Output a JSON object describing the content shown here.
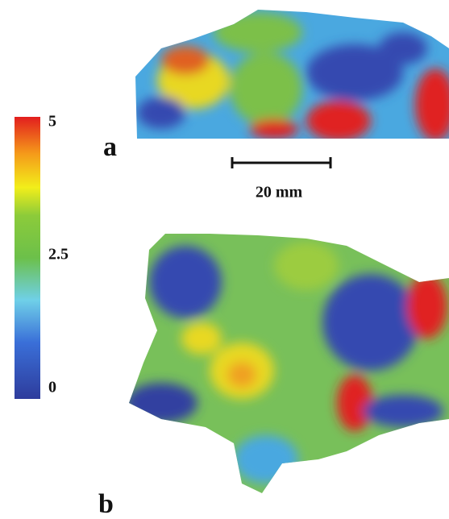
{
  "colorbar": {
    "ticks": [
      0,
      2.5,
      5
    ]
  },
  "panels": [
    {
      "label": "a"
    },
    {
      "label": "b"
    }
  ],
  "scale_bar": {
    "label": "20 mm"
  }
}
